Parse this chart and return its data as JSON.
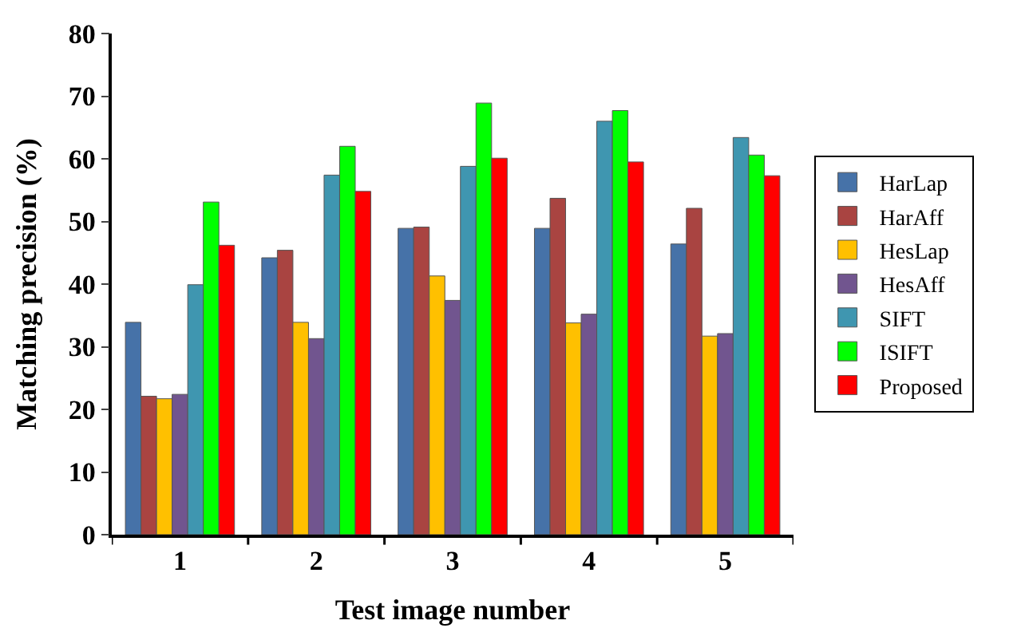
{
  "chart_data": {
    "type": "bar",
    "xlabel": "Test image number",
    "ylabel": "Matching precision (%)",
    "categories": [
      "1",
      "2",
      "3",
      "4",
      "5"
    ],
    "series": [
      {
        "name": "HarLap",
        "color": "#4672a8",
        "values": [
          33.9,
          44.2,
          48.9,
          48.9,
          46.4
        ]
      },
      {
        "name": "HarAff",
        "color": "#a94441",
        "values": [
          22.1,
          45.4,
          49.1,
          53.7,
          52.1
        ]
      },
      {
        "name": "HesLap",
        "color": "#ffc000",
        "values": [
          21.7,
          33.9,
          41.3,
          33.8,
          31.7
        ]
      },
      {
        "name": "HesAff",
        "color": "#71558f",
        "values": [
          22.4,
          31.3,
          37.4,
          35.2,
          32.1
        ]
      },
      {
        "name": "SIFT",
        "color": "#3f96b0",
        "values": [
          39.9,
          57.4,
          58.8,
          66.0,
          63.4
        ]
      },
      {
        "name": "ISIFT",
        "color": "#00ff00",
        "values": [
          53.1,
          62.0,
          68.9,
          67.7,
          60.6
        ]
      },
      {
        "name": "Proposed",
        "color": "#ff0000",
        "values": [
          46.2,
          54.8,
          60.1,
          59.5,
          57.3
        ]
      }
    ],
    "ylim": [
      0,
      80
    ],
    "yticks": [
      0,
      10,
      20,
      30,
      40,
      50,
      60,
      70,
      80
    ],
    "legend": "right"
  }
}
